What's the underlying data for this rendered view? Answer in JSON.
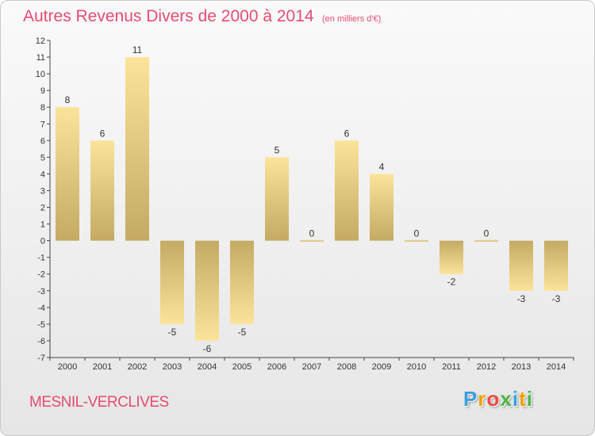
{
  "chart_data": {
    "type": "bar",
    "title": "Autres Revenus Divers de 2000 à 2014",
    "subtitle": "(en milliers d'€)",
    "categories": [
      "2000",
      "2001",
      "2002",
      "2003",
      "2004",
      "2005",
      "2006",
      "2007",
      "2008",
      "2009",
      "2010",
      "2011",
      "2012",
      "2013",
      "2014"
    ],
    "values": [
      8,
      6,
      11,
      -5,
      -6,
      -5,
      5,
      0,
      6,
      4,
      0,
      -2,
      0,
      -3,
      -3
    ],
    "ylim": [
      -7,
      12
    ],
    "yticks": [
      12,
      11,
      10,
      9,
      8,
      7,
      6,
      5,
      4,
      3,
      2,
      1,
      0,
      -1,
      -2,
      -3,
      -4,
      -5,
      -6,
      -7
    ],
    "ytick_labels": [
      "12",
      "11",
      "10",
      "9",
      "8",
      "7",
      "6",
      "5",
      "4",
      "3",
      "2",
      "1",
      "0",
      "-1",
      "-2",
      "-3",
      "-4",
      "-5",
      "-6",
      "-7"
    ],
    "grid": false,
    "colors": {
      "bar_light": "#fbe49a",
      "bar_dark": "#c4aa63"
    }
  },
  "footer": {
    "location": "MESNIL-VERCLIVES",
    "logo_letters": [
      "P",
      "r",
      "o",
      "x",
      "i",
      "t",
      "i"
    ],
    "logo_colors": [
      "#3aa0dc",
      "#f0a000",
      "#e84a4a",
      "#4bb543",
      "#3aa0dc",
      "#f0a000",
      "#4bb543"
    ]
  },
  "colors": {
    "accent": "#e64c70"
  }
}
